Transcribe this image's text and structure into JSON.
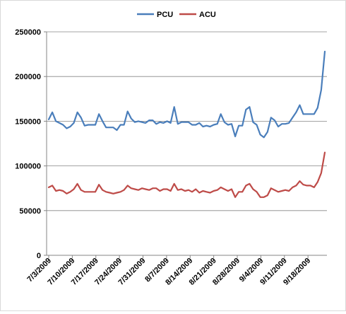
{
  "chart_data": {
    "type": "line",
    "title": "",
    "xlabel": "",
    "ylabel": "",
    "ylim": [
      0,
      250000
    ],
    "yticks": [
      0,
      50000,
      100000,
      150000,
      200000,
      250000
    ],
    "ytick_labels": [
      "0",
      "50000",
      "100000",
      "150000",
      "200000",
      "250000"
    ],
    "xtick_labels": [
      "7/3/2009",
      "7/10/2009",
      "7/17/2009",
      "7/24/2009",
      "7/31/2009",
      "8/7/2009",
      "8/14/2009",
      "8/21/2009",
      "8/28/2009",
      "9/4/2009",
      "9/11/2009",
      "9/18/2009"
    ],
    "x_start": "2009-07-03",
    "x_end": "2009-09-23",
    "legend_position": "top",
    "gridlines": "horizontal",
    "series": [
      {
        "name": "PCU",
        "color": "#4a7ebb",
        "values": [
          152000,
          160000,
          150000,
          148000,
          146000,
          142000,
          144000,
          148000,
          160000,
          154000,
          145000,
          146000,
          146000,
          146000,
          158000,
          150000,
          143000,
          143000,
          143000,
          140000,
          146000,
          146000,
          161000,
          153000,
          149000,
          150000,
          149000,
          148000,
          151000,
          151000,
          147000,
          149000,
          148000,
          150000,
          148000,
          166000,
          147000,
          149000,
          149000,
          149000,
          146000,
          146000,
          148000,
          144000,
          145000,
          144000,
          146000,
          147000,
          158000,
          149000,
          146000,
          147000,
          133000,
          145000,
          145000,
          163000,
          166000,
          149000,
          146000,
          135000,
          132000,
          138000,
          154000,
          151000,
          144000,
          147000,
          147000,
          148000,
          154000,
          160000,
          168000,
          158000,
          158000,
          158000,
          158000,
          165000,
          185000,
          228000
        ]
      },
      {
        "name": "ACU",
        "color": "#be4b48",
        "values": [
          76000,
          78000,
          72000,
          73000,
          72000,
          69000,
          71000,
          74000,
          80000,
          73000,
          71000,
          71000,
          71000,
          71000,
          79000,
          73000,
          71000,
          70000,
          69000,
          70000,
          71000,
          73000,
          78000,
          75000,
          74000,
          73000,
          75000,
          74000,
          73000,
          75000,
          75000,
          72000,
          74000,
          74000,
          72000,
          80000,
          73000,
          74000,
          72000,
          73000,
          71000,
          74000,
          70000,
          72000,
          71000,
          70000,
          72000,
          73000,
          76000,
          74000,
          72000,
          74000,
          65000,
          71000,
          71000,
          78000,
          80000,
          74000,
          71000,
          65000,
          65000,
          67000,
          75000,
          73000,
          71000,
          72000,
          73000,
          72000,
          76000,
          78000,
          83000,
          79000,
          78000,
          78000,
          76000,
          82000,
          92000,
          115000
        ]
      }
    ]
  }
}
